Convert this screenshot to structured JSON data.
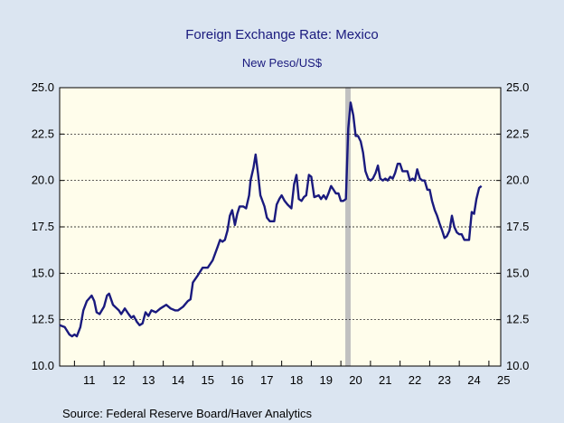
{
  "chart_data": {
    "type": "line",
    "title": "Foreign Exchange Rate: Mexico",
    "subtitle": "New Peso/US$",
    "xlabel": "",
    "ylabel": "",
    "source": "Source:  Federal Reserve Board/Haver Analytics",
    "xlim": [
      2010.5,
      2025.4
    ],
    "ylim": [
      10.0,
      25.0
    ],
    "y_ticks": [
      "10.0",
      "12.5",
      "15.0",
      "17.5",
      "20.0",
      "22.5",
      "25.0"
    ],
    "x_ticks": [
      {
        "label": "11",
        "x": 2011
      },
      {
        "label": "12",
        "x": 2012
      },
      {
        "label": "13",
        "x": 2013
      },
      {
        "label": "14",
        "x": 2014
      },
      {
        "label": "15",
        "x": 2015
      },
      {
        "label": "16",
        "x": 2016
      },
      {
        "label": "17",
        "x": 2017
      },
      {
        "label": "18",
        "x": 2018
      },
      {
        "label": "19",
        "x": 2019
      },
      {
        "label": "20",
        "x": 2020
      },
      {
        "label": "21",
        "x": 2021
      },
      {
        "label": "22",
        "x": 2022
      },
      {
        "label": "23",
        "x": 2023
      },
      {
        "label": "24",
        "x": 2024
      },
      {
        "label": "25",
        "x": 2025
      }
    ],
    "grid": "horizontal dashed",
    "recession_shade": {
      "start": 2020.15,
      "end": 2020.33,
      "color": "#c0c0c0"
    },
    "series": [
      {
        "color": "#1a1a7e",
        "points": [
          [
            2010.5,
            12.2
          ],
          [
            2010.67,
            12.1
          ],
          [
            2010.83,
            11.7
          ],
          [
            2010.92,
            11.6
          ],
          [
            2011.0,
            11.7
          ],
          [
            2011.08,
            11.6
          ],
          [
            2011.2,
            12.1
          ],
          [
            2011.3,
            13.0
          ],
          [
            2011.42,
            13.5
          ],
          [
            2011.58,
            13.8
          ],
          [
            2011.67,
            13.5
          ],
          [
            2011.75,
            12.9
          ],
          [
            2011.85,
            12.8
          ],
          [
            2012.0,
            13.2
          ],
          [
            2012.1,
            13.8
          ],
          [
            2012.17,
            13.9
          ],
          [
            2012.3,
            13.3
          ],
          [
            2012.5,
            13.0
          ],
          [
            2012.58,
            12.8
          ],
          [
            2012.7,
            13.1
          ],
          [
            2012.83,
            12.8
          ],
          [
            2012.92,
            12.6
          ],
          [
            2013.0,
            12.7
          ],
          [
            2013.1,
            12.4
          ],
          [
            2013.2,
            12.2
          ],
          [
            2013.3,
            12.3
          ],
          [
            2013.4,
            12.9
          ],
          [
            2013.5,
            12.7
          ],
          [
            2013.6,
            13.0
          ],
          [
            2013.75,
            12.9
          ],
          [
            2013.9,
            13.1
          ],
          [
            2014.0,
            13.2
          ],
          [
            2014.1,
            13.3
          ],
          [
            2014.25,
            13.1
          ],
          [
            2014.4,
            13.0
          ],
          [
            2014.5,
            13.0
          ],
          [
            2014.67,
            13.2
          ],
          [
            2014.83,
            13.5
          ],
          [
            2014.92,
            13.6
          ],
          [
            2015.0,
            14.5
          ],
          [
            2015.17,
            14.9
          ],
          [
            2015.33,
            15.3
          ],
          [
            2015.5,
            15.3
          ],
          [
            2015.67,
            15.7
          ],
          [
            2015.83,
            16.4
          ],
          [
            2015.92,
            16.8
          ],
          [
            2016.0,
            16.7
          ],
          [
            2016.08,
            16.8
          ],
          [
            2016.17,
            17.3
          ],
          [
            2016.25,
            18.1
          ],
          [
            2016.33,
            18.4
          ],
          [
            2016.42,
            17.6
          ],
          [
            2016.5,
            18.2
          ],
          [
            2016.58,
            18.6
          ],
          [
            2016.7,
            18.6
          ],
          [
            2016.8,
            18.5
          ],
          [
            2016.9,
            19.2
          ],
          [
            2016.95,
            20.0
          ],
          [
            2017.05,
            20.7
          ],
          [
            2017.12,
            21.4
          ],
          [
            2017.2,
            20.4
          ],
          [
            2017.28,
            19.2
          ],
          [
            2017.42,
            18.6
          ],
          [
            2017.5,
            18.0
          ],
          [
            2017.6,
            17.8
          ],
          [
            2017.75,
            17.8
          ],
          [
            2017.83,
            18.7
          ],
          [
            2017.92,
            19.0
          ],
          [
            2018.0,
            19.2
          ],
          [
            2018.1,
            18.9
          ],
          [
            2018.2,
            18.7
          ],
          [
            2018.33,
            18.5
          ],
          [
            2018.42,
            19.8
          ],
          [
            2018.5,
            20.3
          ],
          [
            2018.58,
            19.0
          ],
          [
            2018.67,
            18.9
          ],
          [
            2018.75,
            19.1
          ],
          [
            2018.83,
            19.2
          ],
          [
            2018.92,
            20.3
          ],
          [
            2019.0,
            20.2
          ],
          [
            2019.1,
            19.1
          ],
          [
            2019.25,
            19.2
          ],
          [
            2019.33,
            19.0
          ],
          [
            2019.42,
            19.2
          ],
          [
            2019.5,
            19.0
          ],
          [
            2019.58,
            19.3
          ],
          [
            2019.67,
            19.7
          ],
          [
            2019.75,
            19.5
          ],
          [
            2019.83,
            19.3
          ],
          [
            2019.92,
            19.3
          ],
          [
            2020.0,
            18.9
          ],
          [
            2020.08,
            18.9
          ],
          [
            2020.17,
            19.0
          ],
          [
            2020.25,
            22.8
          ],
          [
            2020.33,
            24.2
          ],
          [
            2020.42,
            23.5
          ],
          [
            2020.5,
            22.4
          ],
          [
            2020.58,
            22.4
          ],
          [
            2020.67,
            22.1
          ],
          [
            2020.75,
            21.5
          ],
          [
            2020.83,
            20.5
          ],
          [
            2020.92,
            20.1
          ],
          [
            2021.0,
            20.0
          ],
          [
            2021.08,
            20.1
          ],
          [
            2021.17,
            20.4
          ],
          [
            2021.25,
            20.8
          ],
          [
            2021.33,
            20.1
          ],
          [
            2021.42,
            20.0
          ],
          [
            2021.5,
            20.1
          ],
          [
            2021.58,
            20.0
          ],
          [
            2021.67,
            20.2
          ],
          [
            2021.75,
            20.1
          ],
          [
            2021.83,
            20.4
          ],
          [
            2021.92,
            20.9
          ],
          [
            2022.0,
            20.9
          ],
          [
            2022.08,
            20.5
          ],
          [
            2022.17,
            20.5
          ],
          [
            2022.25,
            20.5
          ],
          [
            2022.33,
            20.0
          ],
          [
            2022.42,
            20.1
          ],
          [
            2022.5,
            20.0
          ],
          [
            2022.58,
            20.6
          ],
          [
            2022.67,
            20.1
          ],
          [
            2022.75,
            20.0
          ],
          [
            2022.83,
            20.0
          ],
          [
            2022.92,
            19.5
          ],
          [
            2023.0,
            19.5
          ],
          [
            2023.08,
            18.9
          ],
          [
            2023.17,
            18.4
          ],
          [
            2023.25,
            18.1
          ],
          [
            2023.33,
            17.7
          ],
          [
            2023.42,
            17.3
          ],
          [
            2023.5,
            16.9
          ],
          [
            2023.58,
            17.0
          ],
          [
            2023.67,
            17.3
          ],
          [
            2023.75,
            18.1
          ],
          [
            2023.83,
            17.5
          ],
          [
            2023.92,
            17.2
          ],
          [
            2024.0,
            17.1
          ],
          [
            2024.08,
            17.1
          ],
          [
            2024.17,
            16.8
          ],
          [
            2024.25,
            16.8
          ],
          [
            2024.33,
            16.8
          ],
          [
            2024.42,
            18.3
          ],
          [
            2024.5,
            18.2
          ],
          [
            2024.58,
            19.0
          ],
          [
            2024.67,
            19.6
          ],
          [
            2024.75,
            19.7
          ]
        ]
      }
    ]
  }
}
